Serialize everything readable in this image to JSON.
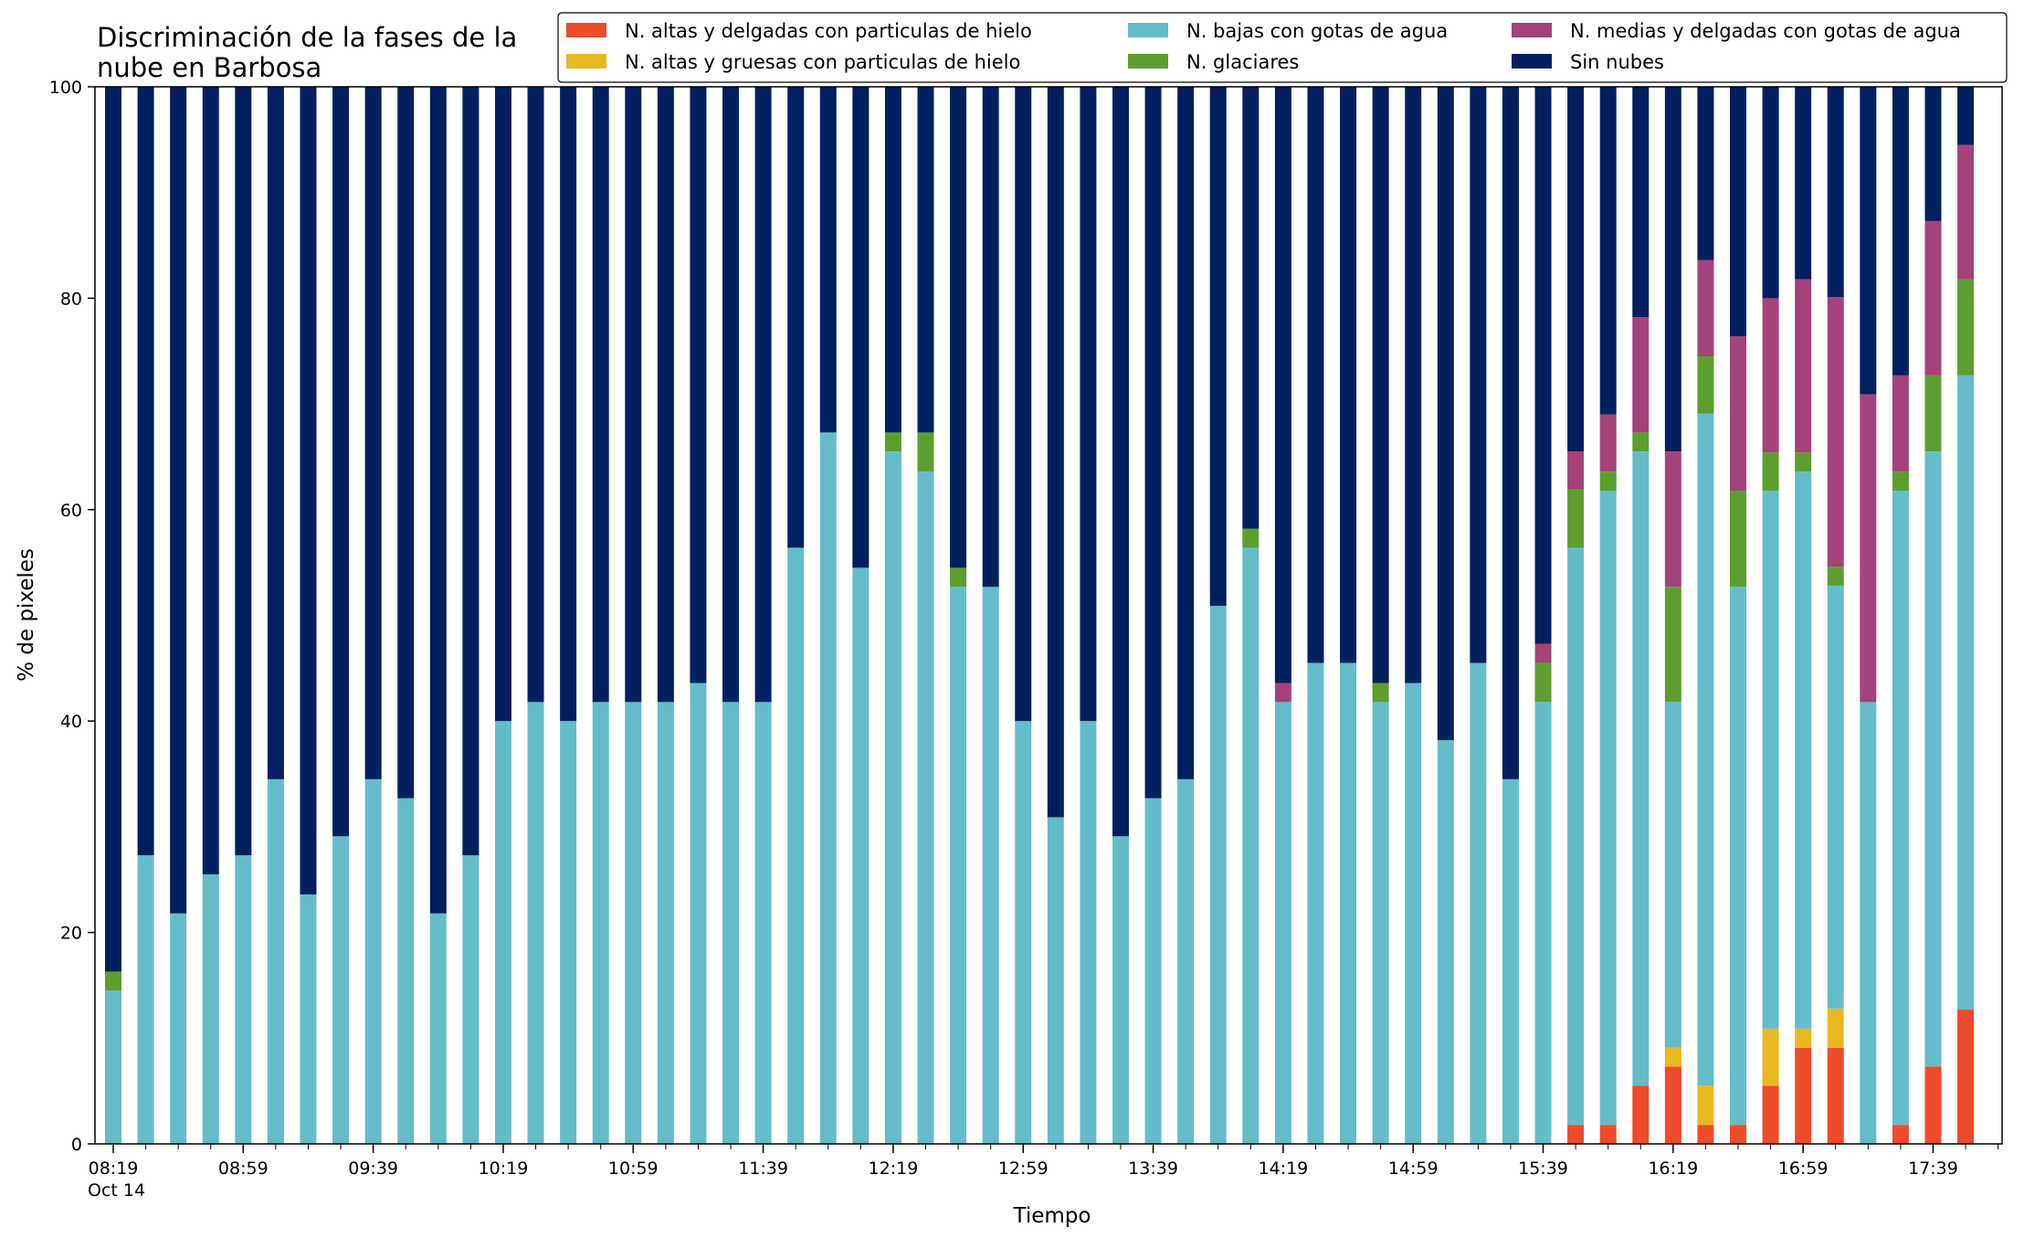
{
  "chart_data": {
    "type": "bar",
    "stacked": true,
    "title": "Discriminación de la fases de la\nnube en Barbosa",
    "xlabel": "Tiempo",
    "ylabel": "% de pixeles",
    "ylim": [
      0,
      100
    ],
    "yticks": [
      0,
      20,
      40,
      60,
      80,
      100
    ],
    "grid": false,
    "legend_position": "top-right",
    "x_tick_labels": [
      {
        "index": 0,
        "label": "08:19",
        "sublabel": "Oct 14"
      },
      {
        "index": 4,
        "label": "08:59"
      },
      {
        "index": 8,
        "label": "09:39"
      },
      {
        "index": 12,
        "label": "10:19"
      },
      {
        "index": 16,
        "label": "10:59"
      },
      {
        "index": 20,
        "label": "11:39"
      },
      {
        "index": 24,
        "label": "12:19"
      },
      {
        "index": 28,
        "label": "12:59"
      },
      {
        "index": 32,
        "label": "13:39"
      },
      {
        "index": 36,
        "label": "14:19"
      },
      {
        "index": 40,
        "label": "14:59"
      },
      {
        "index": 44,
        "label": "15:39"
      },
      {
        "index": 48,
        "label": "16:19"
      },
      {
        "index": 52,
        "label": "16:59"
      },
      {
        "index": 56,
        "label": "17:39"
      }
    ],
    "series": [
      {
        "name": "N. altas y delgadas con particulas de hielo",
        "color": "#ee4b2b",
        "values": [
          0,
          0,
          0,
          0,
          0,
          0,
          0,
          0,
          0,
          0,
          0,
          0,
          0,
          0,
          0,
          0,
          0,
          0,
          0,
          0,
          0,
          0,
          0,
          0,
          0,
          0,
          0,
          0,
          0,
          0,
          0,
          0,
          0,
          0,
          0,
          0,
          0,
          0,
          0,
          0,
          0,
          0,
          0,
          0,
          0,
          1.8,
          1.8,
          5.5,
          7.3,
          1.8,
          1.8,
          5.5,
          9.1,
          9.1,
          0,
          1.8,
          7.3,
          12.7
        ]
      },
      {
        "name": "N. altas y gruesas con particulas de hielo",
        "color": "#e8b820",
        "values": [
          0,
          0,
          0,
          0,
          0,
          0,
          0,
          0,
          0,
          0,
          0,
          0,
          0,
          0,
          0,
          0,
          0,
          0,
          0,
          0,
          0,
          0,
          0,
          0,
          0,
          0,
          0,
          0,
          0,
          0,
          0,
          0,
          0,
          0,
          0,
          0,
          0,
          0,
          0,
          0,
          0,
          0,
          0,
          0,
          0,
          0,
          0,
          0,
          1.8,
          3.7,
          0,
          5.4,
          1.8,
          3.7,
          0,
          0,
          0,
          0
        ]
      },
      {
        "name": "N. bajas con gotas de agua",
        "color": "#65bcc9",
        "values": [
          14.5,
          27.3,
          21.8,
          25.5,
          27.3,
          34.5,
          23.6,
          29.1,
          34.5,
          32.7,
          21.8,
          27.3,
          40,
          41.8,
          40,
          41.8,
          41.8,
          41.8,
          43.6,
          41.8,
          41.8,
          56.4,
          67.3,
          54.5,
          65.5,
          63.6,
          52.7,
          52.7,
          40,
          30.9,
          40,
          29.1,
          32.7,
          34.5,
          50.9,
          56.4,
          41.8,
          45.5,
          45.5,
          41.8,
          43.6,
          38.2,
          45.5,
          34.5,
          41.8,
          54.6,
          60,
          60,
          32.7,
          63.6,
          50.9,
          50.9,
          52.7,
          40,
          41.8,
          60,
          58.2,
          60
        ]
      },
      {
        "name": "N. glaciares",
        "color": "#5d9e2e",
        "values": [
          1.8,
          0,
          0,
          0,
          0,
          0,
          0,
          0,
          0,
          0,
          0,
          0,
          0,
          0,
          0,
          0,
          0,
          0,
          0,
          0,
          0,
          0,
          0,
          0,
          1.8,
          3.7,
          1.8,
          0,
          0,
          0,
          0,
          0,
          0,
          0,
          0,
          1.8,
          0,
          0,
          0,
          1.8,
          0,
          0,
          0,
          0,
          3.7,
          5.5,
          1.8,
          1.8,
          10.9,
          5.4,
          9.1,
          3.6,
          1.8,
          1.8,
          0,
          1.8,
          7.2,
          9.1
        ]
      },
      {
        "name": "N. medias y delgadas con gotas de agua",
        "color": "#a4427a",
        "values": [
          0,
          0,
          0,
          0,
          0,
          0,
          0,
          0,
          0,
          0,
          0,
          0,
          0,
          0,
          0,
          0,
          0,
          0,
          0,
          0,
          0,
          0,
          0,
          0,
          0,
          0,
          0,
          0,
          0,
          0,
          0,
          0,
          0,
          0,
          0,
          0,
          1.8,
          0,
          0,
          0,
          0,
          0,
          0,
          0,
          1.8,
          3.6,
          5.4,
          10.9,
          12.8,
          9.1,
          14.6,
          14.6,
          16.4,
          25.5,
          29.1,
          9.1,
          14.6,
          12.7
        ]
      },
      {
        "name": "Sin nubes",
        "color": "#02205f",
        "values": [
          83.7,
          72.7,
          78.2,
          74.5,
          72.7,
          65.5,
          76.4,
          70.9,
          65.5,
          67.3,
          78.2,
          72.7,
          60,
          58.2,
          60,
          58.2,
          58.2,
          58.2,
          56.4,
          58.2,
          58.2,
          43.6,
          32.7,
          45.5,
          32.7,
          32.7,
          45.5,
          47.3,
          60,
          69.1,
          60,
          70.9,
          67.3,
          65.5,
          49.1,
          41.8,
          56.4,
          54.5,
          54.5,
          56.4,
          56.4,
          61.8,
          54.5,
          65.5,
          52.7,
          34.5,
          30.9,
          21.8,
          34.5,
          16.4,
          23.6,
          20,
          18.2,
          20,
          29.1,
          27.3,
          12.7,
          5.5
        ]
      }
    ]
  }
}
